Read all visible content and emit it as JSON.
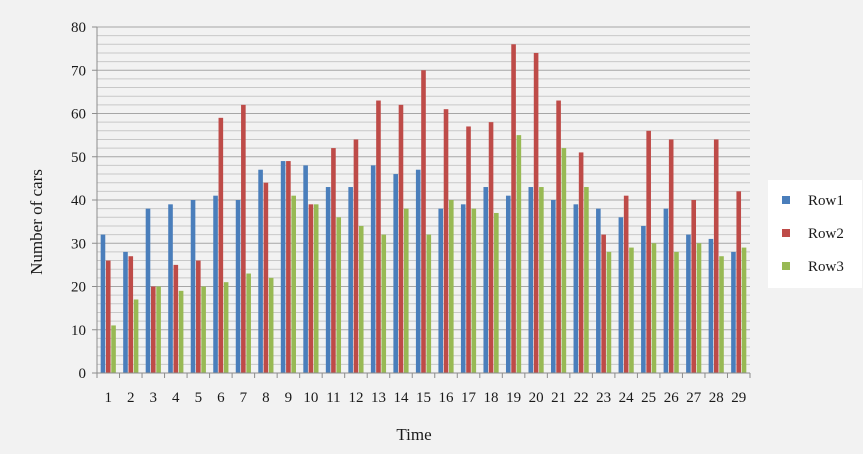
{
  "chart_data": {
    "type": "bar",
    "title": "",
    "xlabel": "Time",
    "ylabel": "Number of cars",
    "ylim": [
      0,
      80
    ],
    "yticks": [
      0,
      10,
      20,
      30,
      40,
      50,
      60,
      70,
      80
    ],
    "minor_grid_step": 2,
    "grid": true,
    "legend_position": "right",
    "categories": [
      "1",
      "2",
      "3",
      "4",
      "5",
      "6",
      "7",
      "8",
      "9",
      "10",
      "11",
      "12",
      "13",
      "14",
      "15",
      "16",
      "17",
      "18",
      "19",
      "20",
      "21",
      "22",
      "23",
      "24",
      "25",
      "26",
      "27",
      "28",
      "29"
    ],
    "series": [
      {
        "name": "Row1",
        "color": "#4a7ebb",
        "values": [
          32,
          28,
          38,
          39,
          40,
          41,
          40,
          47,
          49,
          48,
          43,
          43,
          48,
          46,
          47,
          38,
          39,
          43,
          41,
          43,
          40,
          39,
          38,
          36,
          34,
          38,
          32,
          31,
          28
        ]
      },
      {
        "name": "Row2",
        "color": "#be4b48",
        "values": [
          26,
          27,
          20,
          25,
          26,
          59,
          62,
          44,
          49,
          39,
          52,
          54,
          63,
          62,
          70,
          61,
          57,
          58,
          76,
          74,
          63,
          51,
          32,
          41,
          56,
          54,
          40,
          54,
          42
        ]
      },
      {
        "name": "Row3",
        "color": "#98b954",
        "values": [
          11,
          17,
          20,
          19,
          20,
          21,
          23,
          22,
          41,
          39,
          36,
          34,
          32,
          38,
          32,
          40,
          38,
          37,
          55,
          43,
          52,
          43,
          28,
          29,
          30,
          28,
          30,
          27,
          29
        ]
      }
    ]
  }
}
